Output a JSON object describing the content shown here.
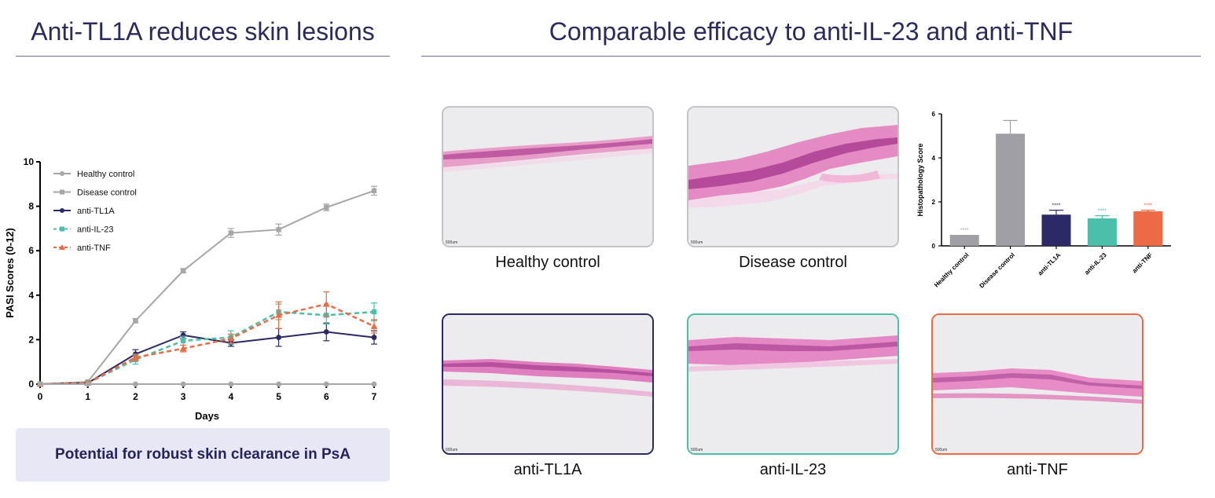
{
  "left_heading": "Anti-TL1A reduces skin lesions",
  "right_heading": "Comparable efficacy to anti-IL-23 and anti-TNF",
  "callout": "Potential for robust skin clearance in PsA",
  "colors": {
    "heading": "#2b2a5e",
    "healthy": "#a6a6a6",
    "disease": "#a6a6a6",
    "tl1a": "#2b2a66",
    "il23": "#4bbfa9",
    "tnf": "#ec6a44",
    "bar_grey": "#a09fa6"
  },
  "images": [
    {
      "caption": "Healthy control",
      "scale": "500um",
      "border": "#c4c4c4"
    },
    {
      "caption": "Disease control",
      "scale": "500um",
      "border": "#c4c4c4"
    },
    {
      "caption": "anti-TL1A",
      "scale": "500um",
      "border": "#2b2a66"
    },
    {
      "caption": "anti-IL-23",
      "scale": "500um",
      "border": "#4bbfa9"
    },
    {
      "caption": "anti-TNF",
      "scale": "500um",
      "border": "#ec6a44"
    }
  ],
  "chart_data": [
    {
      "type": "line",
      "title": "",
      "xlabel": "Days",
      "ylabel": "PASI Scores (0-12)",
      "xlim": [
        0,
        7
      ],
      "ylim": [
        0,
        10
      ],
      "x": [
        0,
        1,
        2,
        3,
        4,
        5,
        6,
        7
      ],
      "xticks": [
        "0",
        "1",
        "2",
        "3",
        "4",
        "5",
        "6",
        "7"
      ],
      "yticks": [
        "0",
        "2",
        "4",
        "6",
        "8",
        "10"
      ],
      "legend_position": "top-left",
      "series": [
        {
          "name": "Healthy control",
          "color": "#a6a6a6",
          "marker": "circle",
          "dash": false,
          "values": [
            0,
            0,
            0,
            0,
            0,
            0,
            0,
            0
          ],
          "errors": [
            0,
            0,
            0,
            0,
            0,
            0,
            0,
            0
          ]
        },
        {
          "name": "Disease control",
          "color": "#a6a6a6",
          "marker": "square",
          "dash": false,
          "values": [
            0,
            0.1,
            2.85,
            5.1,
            6.8,
            6.95,
            7.95,
            8.7
          ],
          "errors": [
            0,
            0.05,
            0.1,
            0.1,
            0.2,
            0.25,
            0.15,
            0.2
          ]
        },
        {
          "name": "anti-TL1A",
          "color": "#2b2a66",
          "marker": "circle",
          "dash": false,
          "values": [
            0,
            0.05,
            1.35,
            2.2,
            1.85,
            2.1,
            2.35,
            2.1
          ],
          "errors": [
            0,
            0.05,
            0.2,
            0.15,
            0.15,
            0.4,
            0.4,
            0.3
          ]
        },
        {
          "name": "anti-IL-23",
          "color": "#4bbfa9",
          "marker": "square",
          "dash": true,
          "values": [
            0,
            0.05,
            1.1,
            1.95,
            2.1,
            3.25,
            3.1,
            3.25
          ],
          "errors": [
            0,
            0.05,
            0.2,
            0.2,
            0.3,
            0.35,
            0.4,
            0.4
          ]
        },
        {
          "name": "anti-TNF",
          "color": "#ec6a44",
          "marker": "triangle",
          "dash": true,
          "values": [
            0,
            0.05,
            1.2,
            1.6,
            2.05,
            3.1,
            3.6,
            2.6
          ],
          "errors": [
            0,
            0.05,
            0.15,
            0.15,
            0.2,
            0.6,
            0.55,
            0.3
          ]
        }
      ]
    },
    {
      "type": "bar",
      "title": "",
      "xlabel": "",
      "ylabel": "Histopathology Score",
      "ylim": [
        0,
        6
      ],
      "yticks": [
        "0",
        "2",
        "4",
        "6"
      ],
      "categories": [
        "Healthy control",
        "Disease control",
        "anti-TL1A",
        "anti-IL-23",
        "anti-TNF"
      ],
      "values": [
        0.5,
        5.1,
        1.42,
        1.25,
        1.57
      ],
      "errors": [
        0,
        0.6,
        0.2,
        0.12,
        0.05
      ],
      "colors": [
        "#a09fa6",
        "#a09fa6",
        "#2b2a66",
        "#4bbfa9",
        "#ec6a44"
      ],
      "annotations": [
        "****",
        "",
        "****",
        "****",
        "****"
      ]
    }
  ]
}
